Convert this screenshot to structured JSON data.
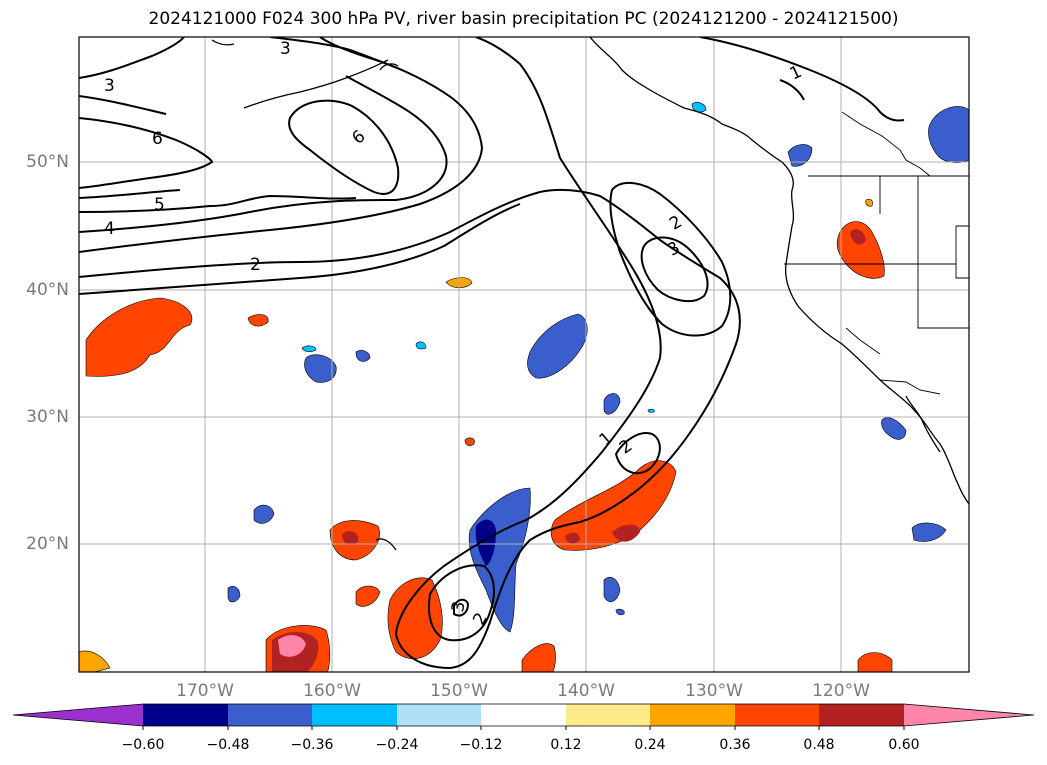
{
  "title": "2024121000 F024 300 hPa PV, river basin precipitation PC (2024121200 - 2024121500)",
  "lat_labels": [
    "50°N",
    "40°N",
    "30°N",
    "20°N"
  ],
  "lon_labels": [
    "170°W",
    "160°W",
    "150°W",
    "140°W",
    "130°W",
    "120°W"
  ],
  "contour_labels": [
    "3",
    "6",
    "6",
    "5",
    "4",
    "2",
    "1",
    "2",
    "3",
    "1",
    "2",
    "3",
    "2"
  ],
  "colorbar": {
    "tick_labels": [
      "−0.60",
      "−0.48",
      "−0.36",
      "−0.24",
      "−0.12",
      "0.12",
      "0.24",
      "0.36",
      "0.48",
      "0.60"
    ],
    "colors": [
      "#9b30cf",
      "#00008b",
      "#3a5fcd",
      "#00bfff",
      "#afe0f7",
      "#ffffff",
      "#ffea8c",
      "#ffa500",
      "#ff4500",
      "#b22222",
      "#ff85aa"
    ]
  }
}
